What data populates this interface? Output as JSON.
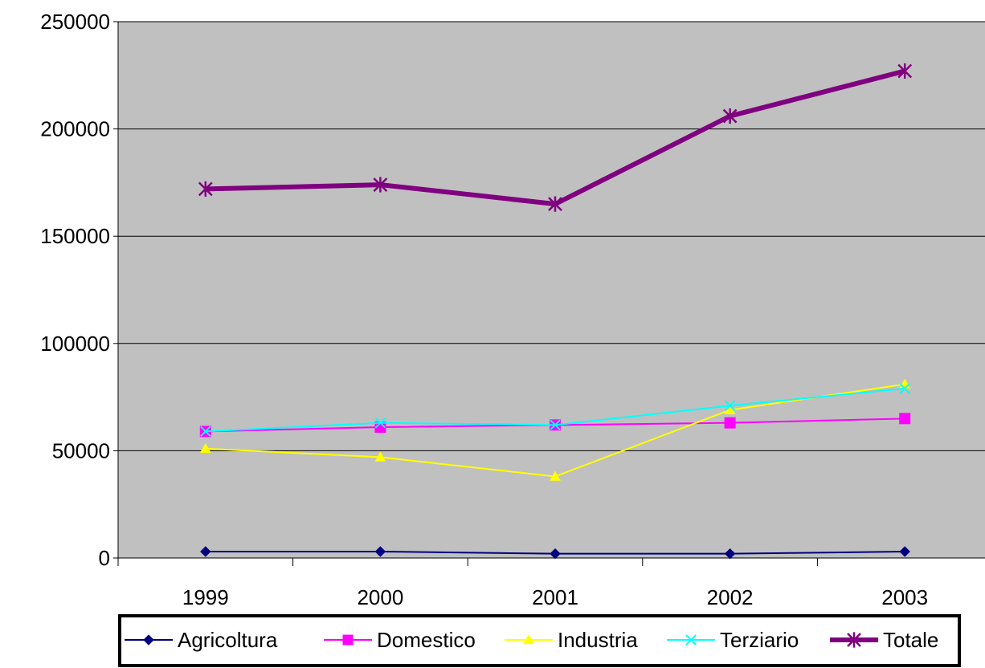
{
  "chart_data": {
    "type": "line",
    "categories": [
      "1999",
      "2000",
      "2001",
      "2002",
      "2003"
    ],
    "ylim": [
      0,
      250000
    ],
    "yticks": [
      "0",
      "50000",
      "100000",
      "150000",
      "200000",
      "250000"
    ],
    "grid": true,
    "plot_background": "#c0c0c0",
    "legend_position": "bottom",
    "series": [
      {
        "name": "Agricoltura",
        "values": [
          3000,
          3000,
          2000,
          2000,
          3000
        ],
        "color": "#000080",
        "marker": "diamond",
        "width": 2
      },
      {
        "name": "Domestico",
        "values": [
          59000,
          61000,
          62000,
          63000,
          65000
        ],
        "color": "#ff00ff",
        "marker": "square",
        "width": 2
      },
      {
        "name": "Industria",
        "values": [
          51000,
          47000,
          38000,
          69000,
          81000
        ],
        "color": "#ffff00",
        "marker": "triangle",
        "width": 2
      },
      {
        "name": "Terziario",
        "values": [
          59000,
          63000,
          62000,
          71000,
          79000
        ],
        "color": "#00ffff",
        "marker": "x",
        "width": 2
      },
      {
        "name": "Totale",
        "values": [
          172000,
          174000,
          165000,
          206000,
          227000
        ],
        "color": "#800080",
        "marker": "asterisk",
        "width": 6
      }
    ]
  }
}
